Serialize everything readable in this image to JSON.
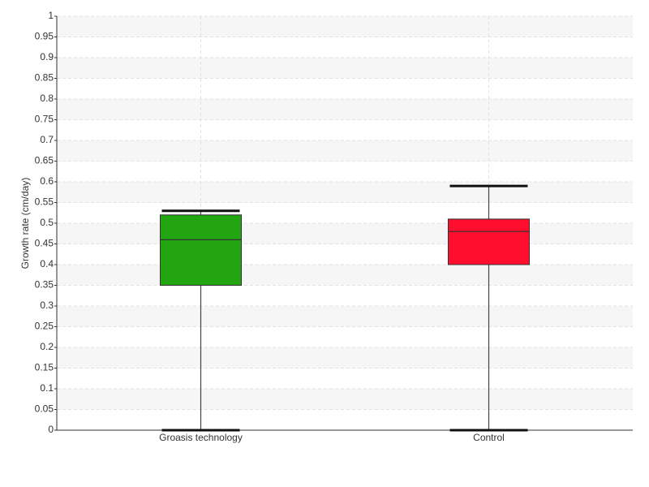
{
  "chart_data": {
    "type": "box",
    "y_label": "Growth rate (cm/day)",
    "categories": [
      "Groasis technology",
      "Control"
    ],
    "boxes": [
      {
        "color": "#22a511",
        "min": 0,
        "q1": 0.35,
        "median": 0.46,
        "q3": 0.52,
        "max": 0.53
      },
      {
        "color": "#ff0f2d",
        "min": 0,
        "q1": 0.4,
        "median": 0.48,
        "q3": 0.51,
        "max": 0.59
      }
    ],
    "ylim": [
      0,
      1
    ],
    "yticks": [
      0,
      0.05,
      0.1,
      0.15,
      0.2,
      0.25,
      0.3,
      0.35,
      0.4,
      0.45,
      0.5,
      0.55,
      0.6,
      0.65,
      0.7,
      0.75,
      0.8,
      0.85,
      0.9,
      0.95,
      1
    ],
    "grid": true
  }
}
